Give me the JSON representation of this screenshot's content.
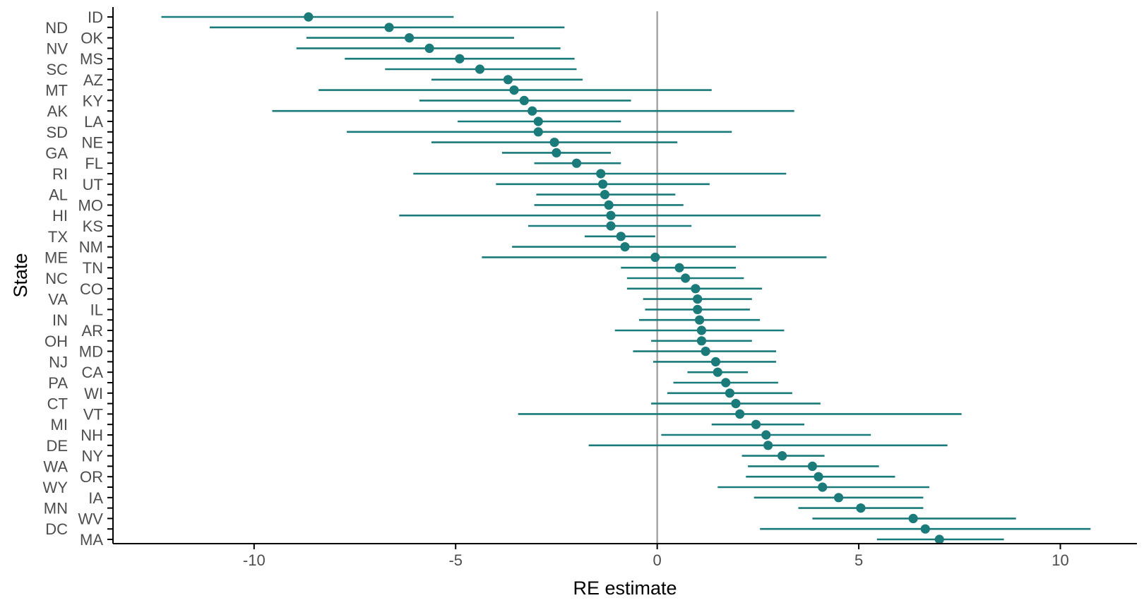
{
  "chart_data": {
    "type": "scatter",
    "subtype": "point-range (forest plot)",
    "xlabel": "RE estimate",
    "ylabel": "State",
    "xlim": [
      -13.5,
      11.9
    ],
    "x_ticks": [
      -10,
      -5,
      0,
      5,
      10
    ],
    "x_tick_labels": [
      "-10",
      "-5",
      "0",
      "5",
      "10"
    ],
    "reference_line_x": 0,
    "grid": false,
    "legend": "none",
    "point_color": "#1b7a7a",
    "reference_line_color": "#a6a6a6",
    "points": [
      {
        "state": "ID",
        "estimate": -8.65,
        "lower": -12.3,
        "upper": -5.05
      },
      {
        "state": "ND",
        "estimate": -6.65,
        "lower": -11.1,
        "upper": -2.3
      },
      {
        "state": "OK",
        "estimate": -6.15,
        "lower": -8.7,
        "upper": -3.55
      },
      {
        "state": "NV",
        "estimate": -5.65,
        "lower": -8.95,
        "upper": -2.4
      },
      {
        "state": "MS",
        "estimate": -4.9,
        "lower": -7.75,
        "upper": -2.05
      },
      {
        "state": "SC",
        "estimate": -4.4,
        "lower": -6.75,
        "upper": -2.0
      },
      {
        "state": "AZ",
        "estimate": -3.7,
        "lower": -5.6,
        "upper": -1.85
      },
      {
        "state": "MT",
        "estimate": -3.55,
        "lower": -8.4,
        "upper": 1.35
      },
      {
        "state": "KY",
        "estimate": -3.3,
        "lower": -5.9,
        "upper": -0.65
      },
      {
        "state": "AK",
        "estimate": -3.1,
        "lower": -9.55,
        "upper": 3.4
      },
      {
        "state": "LA",
        "estimate": -2.95,
        "lower": -4.95,
        "upper": -0.9
      },
      {
        "state": "SD",
        "estimate": -2.95,
        "lower": -7.7,
        "upper": 1.85
      },
      {
        "state": "NE",
        "estimate": -2.55,
        "lower": -5.6,
        "upper": 0.5
      },
      {
        "state": "GA",
        "estimate": -2.5,
        "lower": -3.85,
        "upper": -1.15
      },
      {
        "state": "FL",
        "estimate": -2.0,
        "lower": -3.05,
        "upper": -0.9
      },
      {
        "state": "RI",
        "estimate": -1.4,
        "lower": -6.05,
        "upper": 3.2
      },
      {
        "state": "UT",
        "estimate": -1.35,
        "lower": -4.0,
        "upper": 1.3
      },
      {
        "state": "AL",
        "estimate": -1.3,
        "lower": -3.0,
        "upper": 0.45
      },
      {
        "state": "MO",
        "estimate": -1.2,
        "lower": -3.05,
        "upper": 0.65
      },
      {
        "state": "HI",
        "estimate": -1.15,
        "lower": -6.4,
        "upper": 4.05
      },
      {
        "state": "KS",
        "estimate": -1.15,
        "lower": -3.2,
        "upper": 0.85
      },
      {
        "state": "TX",
        "estimate": -0.9,
        "lower": -1.8,
        "upper": -0.05
      },
      {
        "state": "NM",
        "estimate": -0.8,
        "lower": -3.6,
        "upper": 1.95
      },
      {
        "state": "ME",
        "estimate": -0.05,
        "lower": -4.35,
        "upper": 4.2
      },
      {
        "state": "TN",
        "estimate": 0.55,
        "lower": -0.9,
        "upper": 1.95
      },
      {
        "state": "NC",
        "estimate": 0.7,
        "lower": -0.75,
        "upper": 2.15
      },
      {
        "state": "CO",
        "estimate": 0.95,
        "lower": -0.75,
        "upper": 2.6
      },
      {
        "state": "VA",
        "estimate": 1.0,
        "lower": -0.35,
        "upper": 2.35
      },
      {
        "state": "IL",
        "estimate": 1.0,
        "lower": -0.3,
        "upper": 2.3
      },
      {
        "state": "IN",
        "estimate": 1.05,
        "lower": -0.45,
        "upper": 2.55
      },
      {
        "state": "AR",
        "estimate": 1.1,
        "lower": -1.05,
        "upper": 3.15
      },
      {
        "state": "OH",
        "estimate": 1.1,
        "lower": -0.15,
        "upper": 2.35
      },
      {
        "state": "MD",
        "estimate": 1.2,
        "lower": -0.6,
        "upper": 2.95
      },
      {
        "state": "NJ",
        "estimate": 1.45,
        "lower": -0.1,
        "upper": 2.95
      },
      {
        "state": "CA",
        "estimate": 1.5,
        "lower": 0.75,
        "upper": 2.25
      },
      {
        "state": "PA",
        "estimate": 1.7,
        "lower": 0.4,
        "upper": 3.0
      },
      {
        "state": "WI",
        "estimate": 1.8,
        "lower": 0.25,
        "upper": 3.35
      },
      {
        "state": "CT",
        "estimate": 1.95,
        "lower": -0.15,
        "upper": 4.05
      },
      {
        "state": "VT",
        "estimate": 2.05,
        "lower": -3.45,
        "upper": 7.55
      },
      {
        "state": "MI",
        "estimate": 2.45,
        "lower": 1.35,
        "upper": 3.65
      },
      {
        "state": "NH",
        "estimate": 2.7,
        "lower": 0.1,
        "upper": 5.3
      },
      {
        "state": "DE",
        "estimate": 2.75,
        "lower": -1.7,
        "upper": 7.2
      },
      {
        "state": "NY",
        "estimate": 3.1,
        "lower": 2.1,
        "upper": 4.15
      },
      {
        "state": "WA",
        "estimate": 3.85,
        "lower": 2.25,
        "upper": 5.5
      },
      {
        "state": "OR",
        "estimate": 4.0,
        "lower": 2.2,
        "upper": 5.9
      },
      {
        "state": "WY",
        "estimate": 4.1,
        "lower": 1.5,
        "upper": 6.75
      },
      {
        "state": "IA",
        "estimate": 4.5,
        "lower": 2.4,
        "upper": 6.6
      },
      {
        "state": "MN",
        "estimate": 5.05,
        "lower": 3.5,
        "upper": 6.6
      },
      {
        "state": "WV",
        "estimate": 6.35,
        "lower": 3.85,
        "upper": 8.9
      },
      {
        "state": "DC",
        "estimate": 6.65,
        "lower": 2.55,
        "upper": 10.75
      },
      {
        "state": "MA",
        "estimate": 7.0,
        "lower": 5.45,
        "upper": 8.6
      }
    ]
  }
}
